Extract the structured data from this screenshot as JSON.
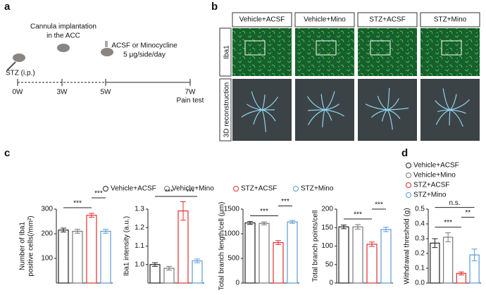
{
  "panel_a": {
    "label": "a",
    "stz": "STZ (i.p.)",
    "cannula": [
      "Cannula implantation",
      "in the ACC"
    ],
    "treatment": [
      "ACSF or Minocycline",
      "5 μg/side/day"
    ],
    "timepoints": [
      "0W",
      "3W",
      "5W",
      "7W"
    ],
    "pain_test": "Pain test"
  },
  "panel_b": {
    "label": "b",
    "columns": [
      "Vehicle+ACSF",
      "Vehicle+Mino",
      "STZ+ACSF",
      "STZ+Mino"
    ],
    "rows": [
      "Iba1",
      "3D reconstruction"
    ]
  },
  "panel_c_label": "c",
  "panel_d_label": "d",
  "groups": {
    "names": [
      "Vehicle+ACSF",
      "Vehicle+Mino",
      "STZ+ACSF",
      "STZ+Mino"
    ],
    "colors": [
      "#222222",
      "#777777",
      "#e0302e",
      "#5b9bd5"
    ]
  },
  "chart_data": [
    {
      "type": "bar",
      "ylabel": [
        "Number of Iba1",
        "positive cells(/mm²)"
      ],
      "ylim": [
        0,
        300
      ],
      "yticks": [
        100,
        200,
        300
      ],
      "values": [
        215,
        210,
        275,
        210
      ],
      "errors": [
        8,
        8,
        8,
        8
      ],
      "annotations": [
        {
          "text": "***",
          "between": [
            0,
            2
          ]
        },
        {
          "text": "***",
          "between": [
            2,
            3
          ]
        }
      ]
    },
    {
      "type": "bar",
      "ylabel": [
        "Iba1 intensity (a.u.)"
      ],
      "ylim": [
        0.9,
        1.3
      ],
      "yticks": [
        {
          "value": 1,
          "label": "1.0"
        },
        1.1,
        1.2,
        1.3
      ],
      "values": [
        1.0,
        0.98,
        1.29,
        1.02
      ],
      "errors": [
        0.01,
        0.01,
        0.05,
        0.01
      ],
      "annotations": [
        {
          "text": "***",
          "between": [
            0,
            2
          ]
        },
        {
          "text": "***",
          "between": [
            2,
            3
          ]
        }
      ]
    },
    {
      "type": "bar",
      "ylabel": [
        "Total branch length/cell (μm)"
      ],
      "ylim": [
        0,
        1500
      ],
      "yticks": [
        0,
        500,
        1000,
        1500
      ],
      "values": [
        1220,
        1210,
        820,
        1240
      ],
      "errors": [
        30,
        30,
        40,
        30
      ],
      "annotations": [
        {
          "text": "***",
          "between": [
            0,
            2
          ]
        },
        {
          "text": "***",
          "between": [
            2,
            3
          ]
        }
      ]
    },
    {
      "type": "bar",
      "ylabel": [
        "Total branch points/cell"
      ],
      "ylim": [
        0,
        200
      ],
      "yticks": [
        0,
        50,
        100,
        150,
        200
      ],
      "values": [
        152,
        152,
        105,
        145
      ],
      "errors": [
        5,
        6,
        6,
        6
      ],
      "annotations": [
        {
          "text": "***",
          "between": [
            0,
            2
          ]
        },
        {
          "text": "***",
          "between": [
            2,
            3
          ]
        }
      ]
    },
    {
      "type": "bar",
      "ylabel": [
        "Withdrawal threshold (g)"
      ],
      "ylim": [
        0,
        0.5
      ],
      "yticks": [
        {
          "value": 0,
          "label": "0.0"
        },
        0.1,
        0.2,
        0.3,
        0.4,
        0.5
      ],
      "values": [
        0.27,
        0.31,
        0.065,
        0.19
      ],
      "errors": [
        0.03,
        0.03,
        0.01,
        0.04
      ],
      "annotations": [
        {
          "text": "***",
          "between": [
            0,
            2
          ]
        },
        {
          "text": "**",
          "between": [
            2,
            3
          ]
        },
        {
          "text": "n.s.",
          "between": [
            0,
            3
          ]
        }
      ]
    }
  ]
}
